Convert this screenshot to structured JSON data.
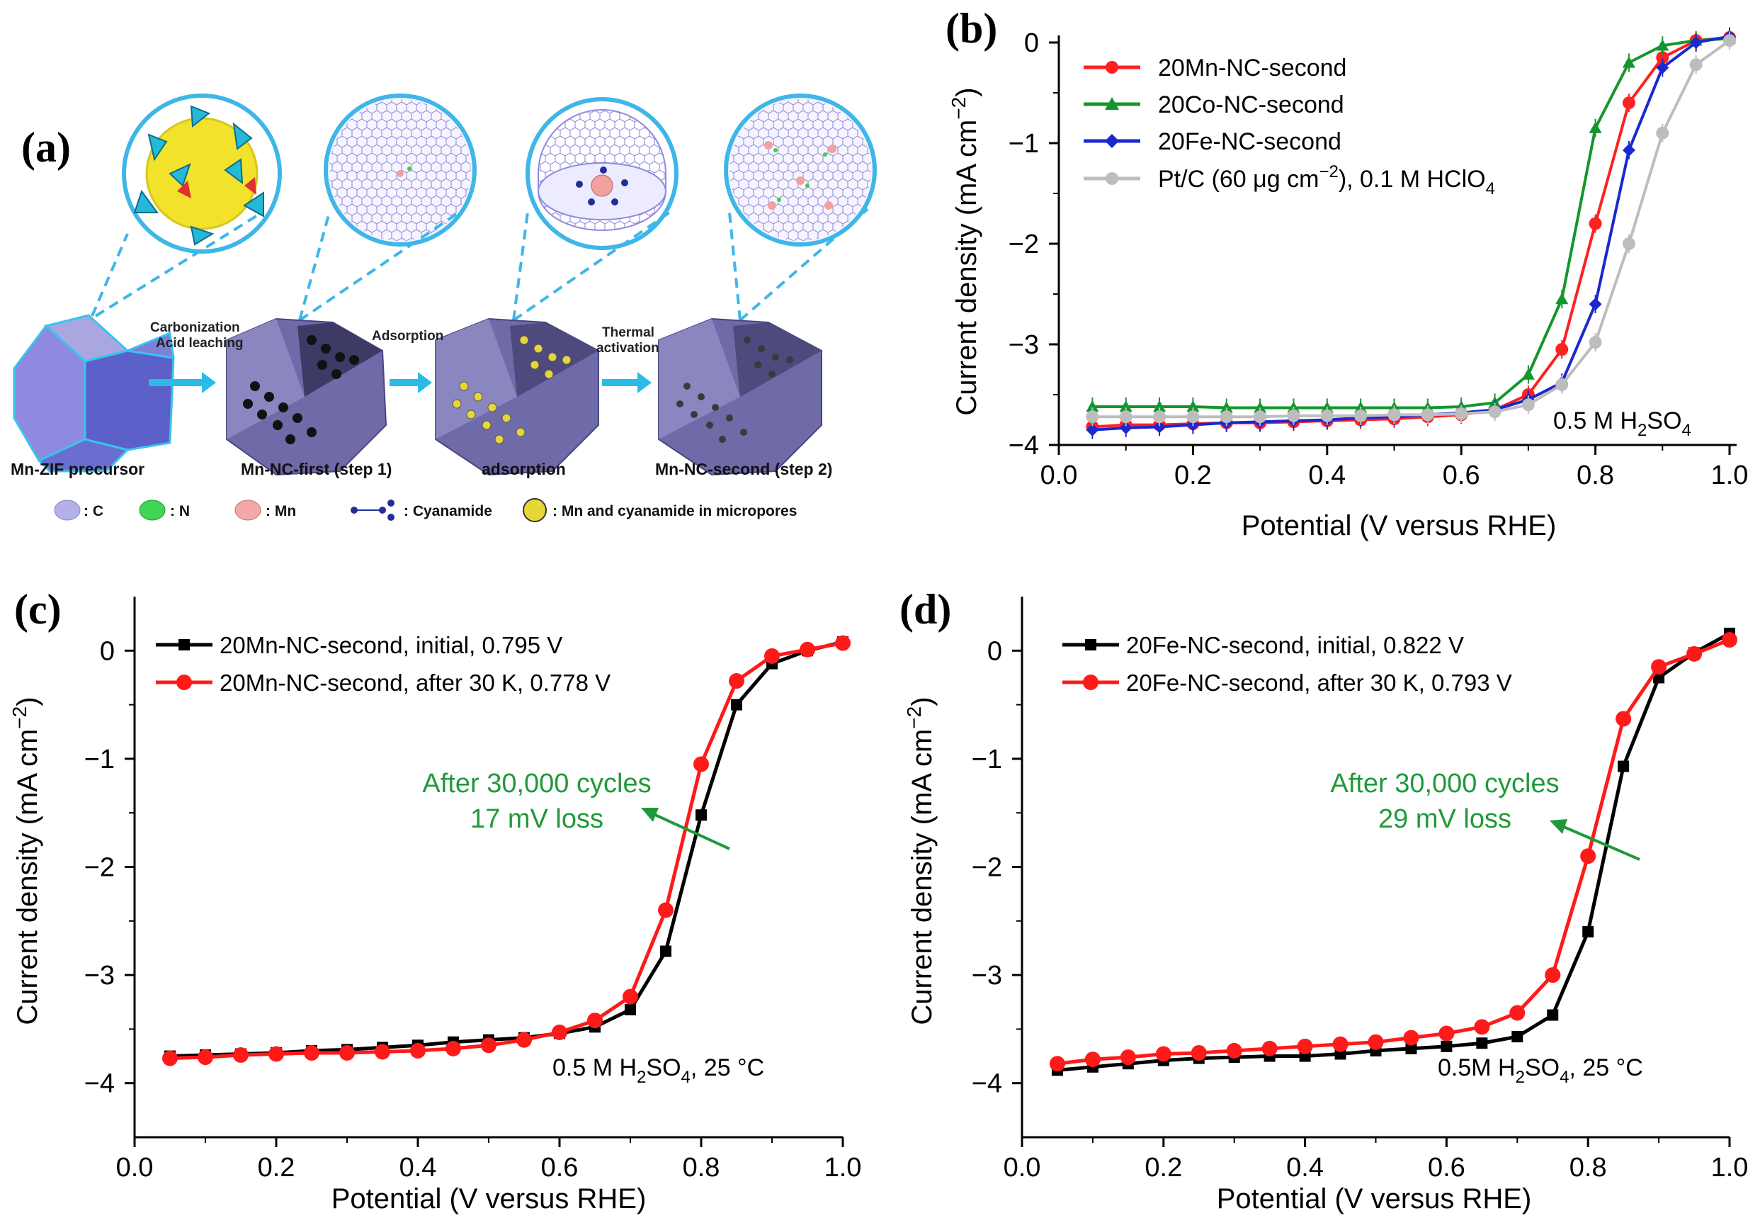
{
  "panel_a": {
    "label": "(a)",
    "step_labels": {
      "carbonization": "Carbonization",
      "acid_leaching": "Acid leaching",
      "adsorption": "Adsorption",
      "thermal": "Thermal",
      "activation": "activation"
    },
    "stage_names": [
      "Mn-ZIF precursor",
      "Mn-NC-first (step 1)",
      "adsorption",
      "Mn-NC-second (step 2)"
    ],
    "key": {
      "c": ": C",
      "n": ": N",
      "mn": ": Mn",
      "cyanamide": ": Cyanamide",
      "micropores": ": Mn and cyanamide in micropores"
    },
    "colors": {
      "carbon": "#a9a6e0",
      "nitrogen": "#37d24a",
      "manganese": "#f2a0a0",
      "zif": "#5b61c9",
      "pore": "#e6d63a"
    }
  },
  "chart_data": [
    {
      "id": "b",
      "type": "line",
      "panel_label": "(b)",
      "xlabel": "Potential (V versus RHE)",
      "ylabel_main": "Current density (mA cm",
      "ylabel_sup": "−2",
      "ylabel_close": ")",
      "xlim": [
        0.0,
        1.0
      ],
      "ylim": [
        -4,
        0
      ],
      "xticks": [
        "0.0",
        "0.2",
        "0.4",
        "0.6",
        "0.8",
        "1.0"
      ],
      "yticks": [
        "0",
        "−1",
        "−2",
        "−3",
        "−4"
      ],
      "condition_main": "0.5 M H",
      "condition_sub1": "2",
      "condition_mid": "SO",
      "condition_sub2": "4",
      "legend_pt_main": "Pt/C (60 μg cm",
      "legend_pt_sup": "−2",
      "legend_pt_rest": "), 0.1 M HClO",
      "legend_pt_sub": "4",
      "x": [
        0.05,
        0.1,
        0.15,
        0.2,
        0.25,
        0.3,
        0.35,
        0.4,
        0.45,
        0.5,
        0.55,
        0.6,
        0.65,
        0.7,
        0.75,
        0.8,
        0.85,
        0.9,
        0.95,
        1.0
      ],
      "series": [
        {
          "name": "20Mn-NC-second",
          "color": "#ff2020",
          "marker": "circle",
          "values": [
            -3.82,
            -3.8,
            -3.8,
            -3.79,
            -3.78,
            -3.78,
            -3.77,
            -3.76,
            -3.75,
            -3.74,
            -3.72,
            -3.7,
            -3.65,
            -3.5,
            -3.05,
            -1.8,
            -0.6,
            -0.15,
            0.02,
            0.05
          ]
        },
        {
          "name": "20Co-NC-second",
          "color": "#14962e",
          "marker": "triangle",
          "values": [
            -3.62,
            -3.62,
            -3.62,
            -3.62,
            -3.63,
            -3.63,
            -3.63,
            -3.63,
            -3.63,
            -3.63,
            -3.63,
            -3.62,
            -3.58,
            -3.3,
            -2.55,
            -0.85,
            -0.2,
            -0.03,
            0.02,
            0.04
          ]
        },
        {
          "name": "20Fe-NC-second",
          "color": "#1a28d0",
          "marker": "diamond",
          "values": [
            -3.85,
            -3.83,
            -3.82,
            -3.8,
            -3.78,
            -3.77,
            -3.76,
            -3.75,
            -3.73,
            -3.72,
            -3.7,
            -3.68,
            -3.65,
            -3.55,
            -3.38,
            -2.6,
            -1.07,
            -0.25,
            0.0,
            0.06
          ]
        },
        {
          "name": "Pt/C (60 μg cm−2), 0.1 M HClO4",
          "color": "#bdbdbd",
          "marker": "circle",
          "values": [
            -3.72,
            -3.72,
            -3.72,
            -3.72,
            -3.72,
            -3.72,
            -3.71,
            -3.71,
            -3.71,
            -3.7,
            -3.7,
            -3.69,
            -3.67,
            -3.6,
            -3.4,
            -2.98,
            -2.0,
            -0.9,
            -0.22,
            0.02
          ]
        }
      ]
    },
    {
      "id": "c",
      "type": "line",
      "panel_label": "(c)",
      "xlabel": "Potential (V versus RHE)",
      "ylabel_main": "Current density (mA cm",
      "ylabel_sup": "−2",
      "ylabel_close": ")",
      "xlim": [
        0.0,
        1.0
      ],
      "ylim": [
        -4.5,
        0.5
      ],
      "xticks": [
        "0.0",
        "0.2",
        "0.4",
        "0.6",
        "0.8",
        "1.0"
      ],
      "yticks": [
        "0",
        "−1",
        "−2",
        "−3",
        "−4"
      ],
      "condition_main": "0.5 M H",
      "condition_sub1": "2",
      "condition_mid": "SO",
      "condition_sub2": "4",
      "condition_tail": ", 25 °C",
      "annotation_line1": "After 30,000 cycles",
      "annotation_line2": "17 mV loss",
      "x": [
        0.05,
        0.1,
        0.15,
        0.2,
        0.25,
        0.3,
        0.35,
        0.4,
        0.45,
        0.5,
        0.55,
        0.6,
        0.65,
        0.7,
        0.75,
        0.8,
        0.85,
        0.9,
        0.95,
        1.0
      ],
      "series": [
        {
          "name": "20Mn-NC-second, initial, 0.795 V",
          "color": "#000000",
          "marker": "square",
          "values": [
            -3.75,
            -3.74,
            -3.73,
            -3.72,
            -3.7,
            -3.69,
            -3.67,
            -3.65,
            -3.62,
            -3.6,
            -3.58,
            -3.54,
            -3.48,
            -3.32,
            -2.78,
            -1.52,
            -0.5,
            -0.12,
            0.0,
            0.08
          ]
        },
        {
          "name": "20Mn-NC-second, after 30 K, 0.778 V",
          "color": "#ff1a1a",
          "marker": "circle",
          "values": [
            -3.77,
            -3.76,
            -3.74,
            -3.73,
            -3.72,
            -3.72,
            -3.71,
            -3.7,
            -3.68,
            -3.65,
            -3.6,
            -3.53,
            -3.42,
            -3.2,
            -2.4,
            -1.05,
            -0.28,
            -0.05,
            0.01,
            0.07
          ]
        }
      ]
    },
    {
      "id": "d",
      "type": "line",
      "panel_label": "(d)",
      "xlabel": "Potential (V versus RHE)",
      "ylabel_main": "Current density (mA cm",
      "ylabel_sup": "−2",
      "ylabel_close": ")",
      "xlim": [
        0.0,
        1.0
      ],
      "ylim": [
        -4.5,
        0.5
      ],
      "xticks": [
        "0.0",
        "0.2",
        "0.4",
        "0.6",
        "0.8",
        "1.0"
      ],
      "yticks": [
        "0",
        "−1",
        "−2",
        "−3",
        "−4"
      ],
      "condition_main": "0.5M H",
      "condition_sub1": "2",
      "condition_mid": "SO",
      "condition_sub2": "4",
      "condition_tail": ", 25 °C",
      "annotation_line1": "After 30,000 cycles",
      "annotation_line2": "29 mV loss",
      "x": [
        0.05,
        0.1,
        0.15,
        0.2,
        0.25,
        0.3,
        0.35,
        0.4,
        0.45,
        0.5,
        0.55,
        0.6,
        0.65,
        0.7,
        0.75,
        0.8,
        0.85,
        0.9,
        0.95,
        1.0
      ],
      "series": [
        {
          "name": "20Fe-NC-second, initial, 0.822 V",
          "color": "#000000",
          "marker": "square",
          "values": [
            -3.88,
            -3.85,
            -3.82,
            -3.79,
            -3.77,
            -3.76,
            -3.75,
            -3.75,
            -3.73,
            -3.7,
            -3.68,
            -3.66,
            -3.63,
            -3.57,
            -3.37,
            -2.6,
            -1.07,
            -0.25,
            -0.02,
            0.16
          ]
        },
        {
          "name": "20Fe-NC-second, after 30 K, 0.793 V",
          "color": "#ff1a1a",
          "marker": "circle",
          "values": [
            -3.82,
            -3.78,
            -3.76,
            -3.73,
            -3.72,
            -3.7,
            -3.68,
            -3.66,
            -3.64,
            -3.62,
            -3.58,
            -3.54,
            -3.48,
            -3.35,
            -3.0,
            -1.9,
            -0.63,
            -0.15,
            -0.03,
            0.1
          ]
        }
      ]
    }
  ]
}
